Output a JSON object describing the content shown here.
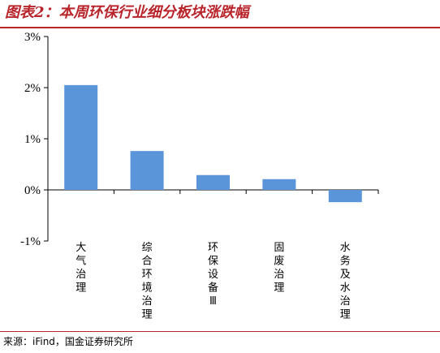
{
  "title": "图表2：本周环保行业细分板块涨跌幅",
  "source": "来源：iFind，国金证券研究所",
  "colors": {
    "accent": "#b8242a",
    "bar": "#5b95d9"
  },
  "chart_data": {
    "type": "bar",
    "categories": [
      "大气治理",
      "综合环境治理",
      "环保设备Ⅲ",
      "固废治理",
      "水务及水治理"
    ],
    "values": [
      2.05,
      0.76,
      0.29,
      0.21,
      -0.24
    ],
    "unit": "%",
    "ylim": [
      -1,
      3
    ],
    "yticks": [
      "3%",
      "2%",
      "1%",
      "0%",
      "-1%"
    ],
    "title": "",
    "xlabel": "",
    "ylabel": "",
    "grid": false,
    "legend": "none"
  }
}
